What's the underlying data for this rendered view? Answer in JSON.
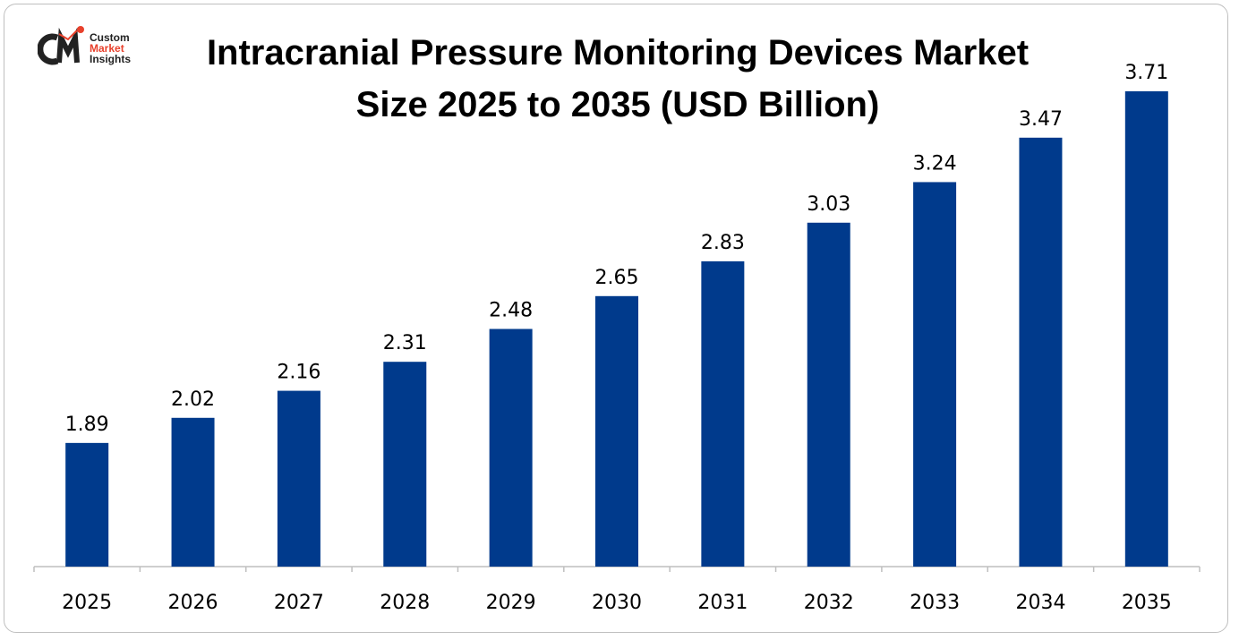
{
  "logo": {
    "text_lines": [
      "Custom",
      "Market",
      "Insights"
    ],
    "monogram": "CMI",
    "colors": {
      "dark": "#222222",
      "accent": "#e8412c"
    }
  },
  "chart_data": {
    "type": "bar",
    "title": "Intracranial Pressure Monitoring Devices Market Size 2025 to 2035 (USD Billion)",
    "title_lines": [
      "Intracranial Pressure Monitoring Devices Market",
      "Size 2025 to 2035 (USD Billion)"
    ],
    "categories": [
      "2025",
      "2026",
      "2027",
      "2028",
      "2029",
      "2030",
      "2031",
      "2032",
      "2033",
      "2034",
      "2035"
    ],
    "values": [
      1.89,
      2.02,
      2.16,
      2.31,
      2.48,
      2.65,
      2.83,
      3.03,
      3.24,
      3.47,
      3.71
    ],
    "data_labels": [
      "1.89",
      "2.02",
      "2.16",
      "2.31",
      "2.48",
      "2.65",
      "2.83",
      "3.03",
      "3.24",
      "3.47",
      "3.71"
    ],
    "xlabel": "",
    "ylabel": "",
    "ylim": [
      1.25,
      3.71
    ],
    "grid": false,
    "legend": "none",
    "bar_color": "#003a8c"
  }
}
